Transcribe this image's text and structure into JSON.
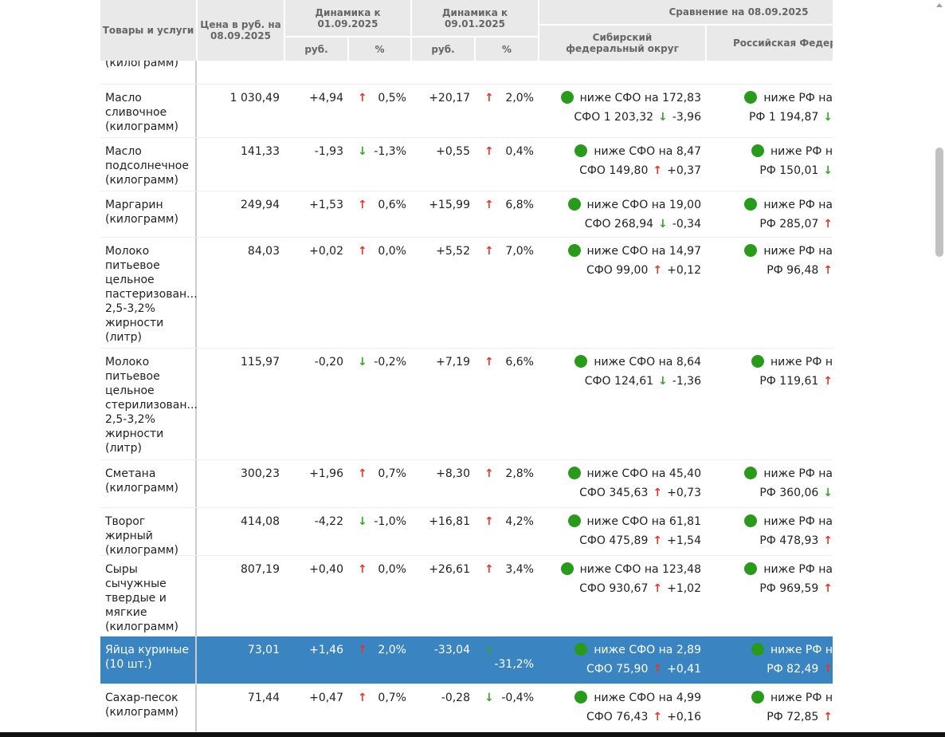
{
  "header": {
    "col_name": "Товары и услуги",
    "col_price": "Цена в руб. на 08.09.2025",
    "dyn1": "Динамика к 01.09.2025",
    "dyn2": "Динамика к 09.01.2025",
    "rub": "руб.",
    "pct": "%",
    "compare": "Сравнение на 08.09.2025",
    "sfo": "Сибирский федеральный округ",
    "rf": "Российская Федерац"
  },
  "colors": {
    "up": "#e0392b",
    "down": "#3aa32a",
    "dot": "#2a9a1c",
    "selected": "#3a84c1"
  },
  "rows": [
    {
      "name": "неразделанная (килограмм)",
      "partial": true
    },
    {
      "name": "Масло сливочное (килограмм)",
      "price": "1 030,49",
      "r1": "+4,94",
      "a1": "up",
      "p1": "0,5%",
      "r2": "+20,17",
      "a2": "up",
      "p2": "2,0%",
      "sfo1": "ниже СФО на 172,83",
      "sfo2": "СФО 1 203,32",
      "sfoa": "down",
      "sfod": "-3,96",
      "rf1": "ниже РФ на",
      "rf2": "РФ 1 194,87",
      "rfa": "down",
      "h": 67
    },
    {
      "name": "Масло подсолнечное (килограмм)",
      "price": "141,33",
      "r1": "-1,93",
      "a1": "down",
      "p1": "-1,3%",
      "r2": "+0,55",
      "a2": "up",
      "p2": "0,4%",
      "sfo1": "ниже СФО на 8,47",
      "sfo2": "СФО 149,80",
      "sfoa": "up",
      "sfod": "+0,37",
      "rf1": "ниже РФ н",
      "rf2": "РФ 150,01",
      "rfa": "down",
      "h": 67
    },
    {
      "name": "Маргарин (килограмм)",
      "price": "249,94",
      "r1": "+1,53",
      "a1": "up",
      "p1": "0,6%",
      "r2": "+15,99",
      "a2": "up",
      "p2": "6,8%",
      "sfo1": "ниже СФО на 19,00",
      "sfo2": "СФО 268,94",
      "sfoa": "down",
      "sfod": "-0,34",
      "rf1": "ниже РФ на",
      "rf2": "РФ 285,07",
      "rfa": "up",
      "h": 58
    },
    {
      "name": "Молоко питьевое цельное пастеризован... 2,5-3,2% жирности (литр)",
      "price": "84,03",
      "r1": "+0,02",
      "a1": "up",
      "p1": "0,0%",
      "r2": "+5,52",
      "a2": "up",
      "p2": "7,0%",
      "sfo1": "ниже СФО на 14,97",
      "sfo2": "СФО 99,00",
      "sfoa": "up",
      "sfod": "+0,12",
      "rf1": "ниже РФ на",
      "rf2": "РФ 96,48",
      "rfa": "up",
      "h": 139
    },
    {
      "name": "Молоко питьевое цельное стерилизован... 2,5-3,2% жирности (литр)",
      "price": "115,97",
      "r1": "-0,20",
      "a1": "down",
      "p1": "-0,2%",
      "r2": "+7,19",
      "a2": "up",
      "p2": "6,6%",
      "sfo1": "ниже СФО на 8,64",
      "sfo2": "СФО 124,61",
      "sfoa": "down",
      "sfod": "-1,36",
      "rf1": "ниже РФ н",
      "rf2": "РФ 119,61",
      "rfa": "up",
      "h": 140
    },
    {
      "name": "Сметана (килограмм)",
      "price": "300,23",
      "r1": "+1,96",
      "a1": "up",
      "p1": "0,7%",
      "r2": "+8,30",
      "a2": "up",
      "p2": "2,8%",
      "sfo1": "ниже СФО на 45,40",
      "sfo2": "СФО 345,63",
      "sfoa": "up",
      "sfod": "+0,73",
      "rf1": "ниже РФ на",
      "rf2": "РФ 360,06",
      "rfa": "down",
      "h": 60
    },
    {
      "name": "Творог жирный (килограмм)",
      "price": "414,08",
      "r1": "-4,22",
      "a1": "down",
      "p1": "-1,0%",
      "r2": "+16,81",
      "a2": "up",
      "p2": "4,2%",
      "sfo1": "ниже СФО на 61,81",
      "sfo2": "СФО 475,89",
      "sfoa": "up",
      "sfod": "+1,54",
      "rf1": "ниже РФ на",
      "rf2": "РФ 478,93",
      "rfa": "up",
      "h": 60
    },
    {
      "name": "Сыры сычужные твердые и мягкие (килограмм)",
      "price": "807,19",
      "r1": "+0,40",
      "a1": "up",
      "p1": "0,0%",
      "r2": "+26,61",
      "a2": "up",
      "p2": "3,4%",
      "sfo1": "ниже СФО на 123,48",
      "sfo2": "СФО 930,67",
      "sfoa": "up",
      "sfod": "+1,02",
      "rf1": "ниже РФ на",
      "rf2": "РФ 969,59",
      "rfa": "up",
      "h": 101
    },
    {
      "name": "Яйца куриные (10 шт.)",
      "price": "73,01",
      "r1": "+1,46",
      "a1": "up",
      "p1": "2,0%",
      "r2": "-33,04",
      "a2": "down",
      "p2": "-31,2%",
      "sfo1": "ниже СФО на 2,89",
      "sfo2": "СФО 75,90",
      "sfoa": "up",
      "sfod": "+0,41",
      "rf1": "ниже РФ н",
      "rf2": "РФ 82,49",
      "rfa": "up",
      "h": 60,
      "selected": true
    },
    {
      "name": "Сахар-песок (килограмм)",
      "price": "71,44",
      "r1": "+0,47",
      "a1": "up",
      "p1": "0,7%",
      "r2": "-0,28",
      "a2": "down",
      "p2": "-0,4%",
      "sfo1": "ниже СФО на 4,99",
      "sfo2": "СФО 76,43",
      "sfoa": "up",
      "sfod": "+0,16",
      "rf1": "ниже РФ н",
      "rf2": "РФ 72,85",
      "rfa": "up",
      "h": 60
    }
  ]
}
